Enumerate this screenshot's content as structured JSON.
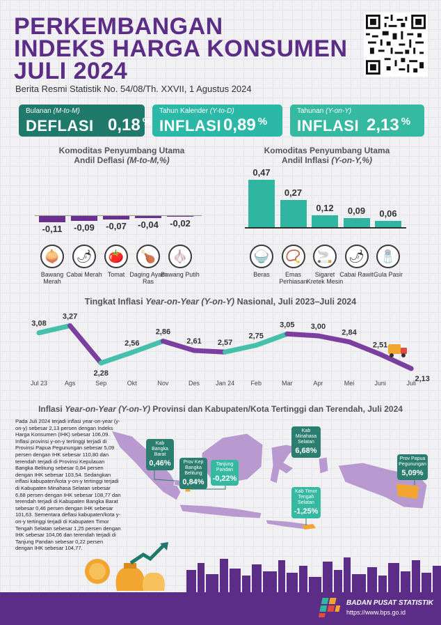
{
  "header": {
    "title_lines": [
      "PERKEMBANGAN",
      "INDEKS HARGA KONSUMEN",
      "JULI 2024"
    ],
    "subtitle": "Berita Resmi Statistik No. 54/08/Th. XXVII, 1 Agustus 2024"
  },
  "summary": [
    {
      "label_pre": "Bulanan ",
      "label_em": "(M-to-M)",
      "kind": "DEFLASI",
      "value": "0,18",
      "pct": "%",
      "color": "#1f7a6c"
    },
    {
      "label_pre": "Tahun Kalender ",
      "label_em": "(Y-to-D)",
      "kind": "INFLASI",
      "value": "0,89",
      "pct": "%",
      "color": "#2bb8a6"
    },
    {
      "label_pre": "Tahunan ",
      "label_em": "(Y-on-Y)",
      "kind": "INFLASI",
      "value": "2,13",
      "pct": "%",
      "color": "#35b9a1"
    }
  ],
  "deflasi": {
    "title1": "Komoditas Penyumbang Utama",
    "title2_pre": "Andil Deflasi ",
    "title2_em": "(M-to-M,%)",
    "color": "#6b2f8f",
    "items": [
      {
        "value": -0.11,
        "label": "-0,11",
        "name": "Bawang Merah",
        "icon": "onion-icon",
        "glyph": "🧅"
      },
      {
        "value": -0.09,
        "label": "-0,09",
        "name": "Cabai Merah",
        "icon": "chili-icon",
        "glyph": "🌶"
      },
      {
        "value": -0.07,
        "label": "-0,07",
        "name": "Tomat",
        "icon": "tomato-icon",
        "glyph": "🍅"
      },
      {
        "value": -0.04,
        "label": "-0,04",
        "name": "Daging Ayam Ras",
        "icon": "chicken-icon",
        "glyph": "🍗"
      },
      {
        "value": -0.02,
        "label": "-0,02",
        "name": "Bawang Putih",
        "icon": "garlic-icon",
        "glyph": "🧄"
      }
    ]
  },
  "inflasi": {
    "title1": "Komoditas Penyumbang Utama",
    "title2_pre": "Andil Inflasi ",
    "title2_em": "(Y-on-Y,%)",
    "color": "#2fb5a0",
    "items": [
      {
        "value": 0.47,
        "label": "0,47",
        "name": "Beras",
        "icon": "rice-bowl-icon",
        "glyph": "🍚"
      },
      {
        "value": 0.27,
        "label": "0,27",
        "name": "Emas Perhiasan",
        "icon": "necklace-icon",
        "glyph": "📿"
      },
      {
        "value": 0.12,
        "label": "0,12",
        "name": "Sigaret Kretek Mesin",
        "icon": "cigarette-icon",
        "glyph": "🚬"
      },
      {
        "value": 0.09,
        "label": "0,09",
        "name": "Cabai Rawit",
        "icon": "green-chili-icon",
        "glyph": "🌶"
      },
      {
        "value": 0.06,
        "label": "0,06",
        "name": "Gula Pasir",
        "icon": "sugar-sack-icon",
        "glyph": "🧂"
      }
    ]
  },
  "chart_data": {
    "type": "line",
    "title_pre": "Tingkat Inflasi ",
    "title_em": "Year-on-Year (Y-on-Y)",
    "title_post": " Nasional, Juli 2023–Juli 2024",
    "categories": [
      "Jul 23",
      "Ags",
      "Sep",
      "Okt",
      "Nov",
      "Des",
      "Jan 24",
      "Feb",
      "Mar",
      "Apr",
      "Mei",
      "Juni",
      "Juli"
    ],
    "values": [
      3.08,
      3.27,
      2.28,
      2.56,
      2.86,
      2.61,
      2.57,
      2.75,
      3.05,
      3.0,
      2.84,
      2.51,
      2.13
    ],
    "labels": [
      "3,08",
      "3,27",
      "2,28",
      "2,56",
      "2,86",
      "2,61",
      "2,57",
      "2,75",
      "3,05",
      "3,00",
      "2,84",
      "2,51",
      "2,13"
    ],
    "colors": {
      "up": "#45c0ab",
      "down": "#7b3fa0"
    }
  },
  "map": {
    "title_pre": "Inflasi ",
    "title_em": "Year-on-Year (Y-on-Y)",
    "title_post": " Provinsi dan Kabupaten/Kota Tertinggi dan Terendah, Juli 2024",
    "note": "Pada Juli 2024 terjadi inflasi year-on-year (y-on-y) sebesar 2,13 persen dengan Indeks Harga Konsumen (IHK) sebesar 106,09. Inflasi provinsi y-on-y tertinggi terjadi di Provinsi Papua Pegunungan sebesar 5,09 persen dengan IHK sebesar 110,80 dan terendah terjadi di Provinsi Kepulauan Bangka Belitung sebesar 0,84 persen dengan IHK sebesar 103,54. Sedangkan inflasi kabupaten/kota y-on-y tertinggi terjadi di Kabupaten Minahasa Selatan sebesar 6,68 persen dengan IHK sebesar 108,77 dan terendah terjadi di Kabupaten Bangka Barat sebesar 0,46 persen dengan IHK sebesar 101,63. Sementara deflasi kabupaten/kota y-on-y tertinggi terjadi di Kabupaten Timor Tengah Selatan sebesar 1,25 persen dengan IHK sebesar 104,06 dan terendah terjadi di Tanjung Pandan sebesar 0,22 persen dengan IHK sebesar 104,77.",
    "callouts": [
      {
        "name": "Kab Bangka Barat",
        "value": "0,46%",
        "color": "#2a7d6f"
      },
      {
        "name": "Prov Kep Bangka Belitung",
        "value": "0,84%",
        "color": "#2a7d6f"
      },
      {
        "name": "Tanjung Pandan",
        "value": "-0,22%",
        "color": "#35b9a1"
      },
      {
        "name": "Kab Minahasa Selatan",
        "value": "6,68%",
        "color": "#2a7d6f"
      },
      {
        "name": "Kab Timor Tengah Selatan",
        "value": "-1,25%",
        "color": "#35b9a1"
      },
      {
        "name": "Prov Papua Pegunungan",
        "value": "5,09%",
        "color": "#2a7d6f"
      }
    ]
  },
  "footer": {
    "org": "BADAN PUSAT STATISTIK",
    "url": "https://www.bps.go.id"
  }
}
